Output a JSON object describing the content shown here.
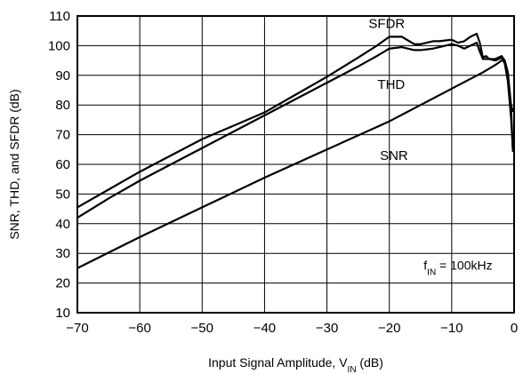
{
  "chart_data": {
    "type": "line",
    "title": "",
    "xlabel": "Input Signal Amplitude, V",
    "xlabel_sub": "IN",
    "xlabel_suffix": " (dB)",
    "ylabel": "SNR, THD, and SFDR  (dB)",
    "xlim": [
      -70,
      0
    ],
    "ylim": [
      10,
      110
    ],
    "x_ticks": [
      -70,
      -60,
      -50,
      -40,
      -30,
      -20,
      -10,
      0
    ],
    "x_tick_labels": [
      "−70",
      "−60",
      "−50",
      "−40",
      "−30",
      "−20",
      "−10",
      "0"
    ],
    "y_ticks": [
      10,
      20,
      30,
      40,
      50,
      60,
      70,
      80,
      90,
      100,
      110
    ],
    "y_tick_labels": [
      "10",
      "20",
      "30",
      "40",
      "50",
      "60",
      "70",
      "80",
      "90",
      "100",
      "110"
    ],
    "grid": true,
    "annotation": {
      "prefix": "f",
      "sub": "IN",
      "suffix": " = 100kHz"
    },
    "series": [
      {
        "name": "SFDR",
        "color": "#000000",
        "x": [
          -70,
          -65,
          -60,
          -55,
          -50,
          -45,
          -40,
          -35,
          -30,
          -25,
          -22,
          -20,
          -18,
          -16,
          -15,
          -13,
          -12,
          -10,
          -9,
          -8,
          -7,
          -6,
          -5.5,
          -5,
          -4.5,
          -4,
          -3,
          -2,
          -1.5,
          -1,
          -0.5,
          -0.2
        ],
        "y": [
          45.5,
          51.5,
          57.5,
          63,
          68.5,
          73,
          77.5,
          83.5,
          89.5,
          96,
          100,
          103,
          103,
          100.5,
          100.5,
          101.5,
          101.5,
          102,
          101,
          101.5,
          103,
          104,
          101,
          96,
          96.5,
          95.5,
          95.5,
          96.5,
          95,
          89,
          80,
          78
        ]
      },
      {
        "name": "THD",
        "color": "#000000",
        "x": [
          -70,
          -65,
          -60,
          -55,
          -50,
          -45,
          -40,
          -35,
          -30,
          -25,
          -22,
          -20,
          -18,
          -16,
          -15,
          -13,
          -12,
          -10,
          -9,
          -8,
          -7,
          -6,
          -5.5,
          -5,
          -4.5,
          -4,
          -3,
          -2,
          -1.5,
          -1,
          -0.5,
          -0.2
        ],
        "y": [
          42,
          48.5,
          54.5,
          60,
          65.5,
          71,
          76.5,
          82,
          87.5,
          93,
          96.5,
          99,
          99.5,
          98.5,
          98.5,
          99,
          99.5,
          100.5,
          100,
          99,
          100,
          101,
          98,
          95.5,
          95.5,
          95.5,
          95,
          96,
          94,
          88,
          76,
          65.5
        ]
      },
      {
        "name": "SNR",
        "color": "#000000",
        "x": [
          -70,
          -60,
          -50,
          -40,
          -30,
          -20,
          -10,
          -5,
          -3,
          -2,
          -1.5,
          -1,
          -0.5,
          -0.2
        ],
        "y": [
          25,
          35.5,
          45.5,
          55.5,
          65,
          74.5,
          85.5,
          91,
          93.5,
          95,
          95,
          91,
          80,
          64.5
        ]
      }
    ],
    "series_label_anchors": [
      {
        "name": "SFDR",
        "x": -17.5,
        "y": 107.5
      },
      {
        "name": "THD",
        "x": -17.5,
        "y": 87
      },
      {
        "name": "SNR",
        "x": -17,
        "y": 63
      }
    ]
  }
}
